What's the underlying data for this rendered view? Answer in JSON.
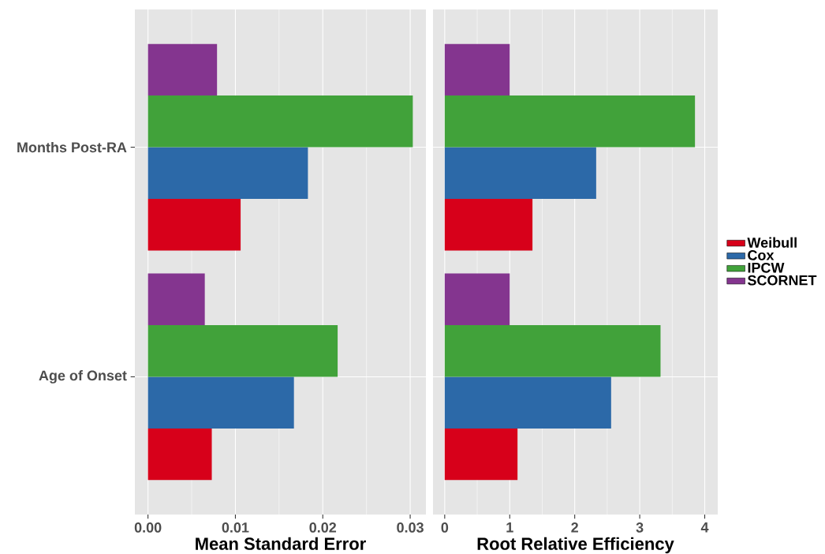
{
  "chart_data": [
    {
      "type": "bar",
      "orientation": "horizontal",
      "xlabel": "Mean Standard Error",
      "categories": [
        "Months Post-RA",
        "Age of Onset"
      ],
      "xlim": [
        -0.0015,
        0.0318
      ],
      "xticks": [
        {
          "value": 0,
          "label": "0.00"
        },
        {
          "value": 0.01,
          "label": "0.01"
        },
        {
          "value": 0.02,
          "label": "0.02"
        },
        {
          "value": 0.03,
          "label": "0.03"
        }
      ],
      "grid": true,
      "series": [
        {
          "color": "#d7001a",
          "values": [
            0.0106,
            0.0073
          ]
        },
        {
          "color": "#2c69a8",
          "values": [
            0.0183,
            0.0167
          ]
        },
        {
          "color": "#41a23a",
          "values": [
            0.0303,
            0.0217
          ]
        },
        {
          "color": "#84358f",
          "values": [
            0.0079,
            0.0065
          ]
        }
      ]
    },
    {
      "type": "bar",
      "orientation": "horizontal",
      "xlabel": "Root Relative Efficiency",
      "categories": [
        null,
        null
      ],
      "xlim": [
        -0.18,
        4.2
      ],
      "xticks": [
        0,
        1,
        2,
        3,
        4
      ],
      "grid": true,
      "legend": "right",
      "tick_labels": "x",
      "series": [
        {
          "name": "Weibull",
          "color": "#d7001a",
          "values": [
            1.35,
            1.12
          ]
        },
        {
          "name": "Cox",
          "color": "#2c69a8",
          "values": [
            2.33,
            2.56
          ]
        },
        {
          "name": "IPCW",
          "color": "#41a23a",
          "values": [
            3.85,
            3.32
          ]
        },
        {
          "name": "SCORNET",
          "color": "#84358f",
          "values": [
            1.0,
            1.0
          ]
        }
      ]
    }
  ]
}
